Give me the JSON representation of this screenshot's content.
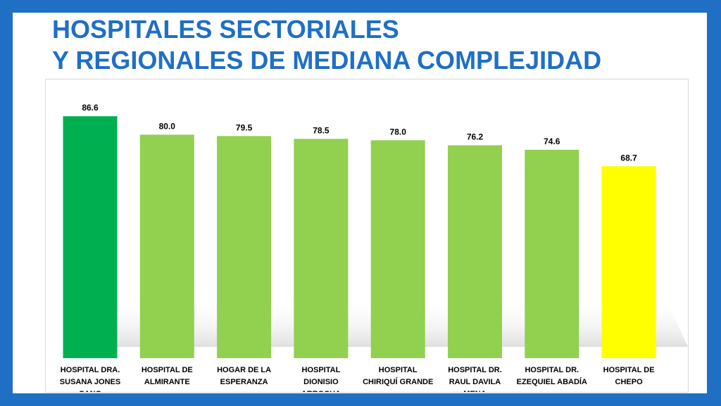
{
  "slide": {
    "title_line1": "HOSPITALES SECTORIALES",
    "title_line2": "Y REGIONALES DE MEDIANA COMPLEJIDAD"
  },
  "colors": {
    "frame": "#1f6fc5",
    "title": "#1f6fc5",
    "highest": "#00b050",
    "default": "#92d050",
    "lowest": "#ffff00"
  },
  "chart_data": {
    "type": "bar",
    "title": "",
    "xlabel": "",
    "ylabel": "",
    "ylim": [
      0,
      100
    ],
    "grid": false,
    "legend": "none",
    "categories": [
      [
        "HOSPITAL DRA.",
        "SUSANA JONES",
        "CANO"
      ],
      [
        "HOSPITAL DE",
        "ALMIRANTE"
      ],
      [
        "HOGAR DE LA",
        "ESPERANZA"
      ],
      [
        "HOSPITAL",
        "DIONISIO",
        "ARROCHA"
      ],
      [
        "HOSPITAL",
        "CHIRIQUÍ GRANDE"
      ],
      [
        "HOSPITAL DR.",
        "RAUL DAVILA",
        "MENA"
      ],
      [
        "HOSPITAL DR.",
        "EZEQUIEL ABADÍA"
      ],
      [
        "HOSPITAL DE",
        "CHEPO"
      ]
    ],
    "values": [
      86.6,
      80.0,
      79.5,
      78.5,
      78.0,
      76.2,
      74.6,
      68.7
    ],
    "value_labels": [
      "86.6",
      "80.0",
      "79.5",
      "78.5",
      "78.0",
      "76.2",
      "74.6",
      "68.7"
    ],
    "bar_colors": [
      "#00b050",
      "#92d050",
      "#92d050",
      "#92d050",
      "#92d050",
      "#92d050",
      "#92d050",
      "#ffff00"
    ]
  }
}
